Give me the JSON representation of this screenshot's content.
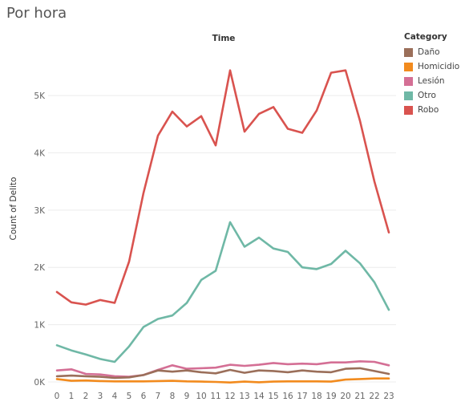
{
  "title": "Por hora",
  "chart_data": {
    "type": "line",
    "column_header": "Time",
    "ylabel": "Count of Delito",
    "ylim": [
      0,
      5800
    ],
    "yticks": [
      0,
      1000,
      2000,
      3000,
      4000,
      5000
    ],
    "ytick_labels": [
      "0K",
      "1K",
      "2K",
      "3K",
      "4K",
      "5K"
    ],
    "x": [
      0,
      1,
      2,
      3,
      4,
      5,
      6,
      7,
      8,
      9,
      10,
      11,
      12,
      13,
      14,
      15,
      16,
      17,
      18,
      19,
      20,
      21,
      22,
      23
    ],
    "legend_title": "Category",
    "legend_position": "right",
    "series": [
      {
        "name": "Robo",
        "color": "#d9534f",
        "values": [
          1570,
          1390,
          1350,
          1430,
          1380,
          2100,
          3300,
          4300,
          4720,
          4460,
          4640,
          4130,
          5440,
          4370,
          4680,
          4800,
          4420,
          4350,
          4740,
          5400,
          5440,
          4560,
          3500,
          2610
        ]
      },
      {
        "name": "Otro",
        "color": "#6fb8a6",
        "values": [
          640,
          550,
          480,
          400,
          350,
          620,
          960,
          1100,
          1160,
          1380,
          1780,
          1940,
          2790,
          2360,
          2520,
          2330,
          2270,
          2000,
          1970,
          2060,
          2290,
          2070,
          1740,
          1260
        ]
      },
      {
        "name": "Lesión",
        "color": "#d46f95",
        "values": [
          200,
          220,
          140,
          130,
          100,
          90,
          120,
          210,
          290,
          230,
          240,
          250,
          300,
          280,
          300,
          330,
          310,
          320,
          310,
          340,
          340,
          360,
          350,
          290
        ]
      },
      {
        "name": "Daño",
        "color": "#9b6f5a",
        "values": [
          100,
          110,
          100,
          90,
          70,
          80,
          120,
          200,
          180,
          200,
          170,
          150,
          210,
          160,
          200,
          190,
          170,
          200,
          180,
          170,
          230,
          240,
          190,
          140
        ]
      },
      {
        "name": "Homicidio",
        "color": "#f28b1e",
        "values": [
          50,
          20,
          25,
          15,
          10,
          10,
          10,
          15,
          20,
          10,
          5,
          0,
          -10,
          5,
          -5,
          5,
          10,
          10,
          10,
          5,
          40,
          50,
          60,
          60
        ]
      }
    ],
    "legend_order": [
      "Daño",
      "Homicidio",
      "Lesión",
      "Otro",
      "Robo"
    ]
  }
}
